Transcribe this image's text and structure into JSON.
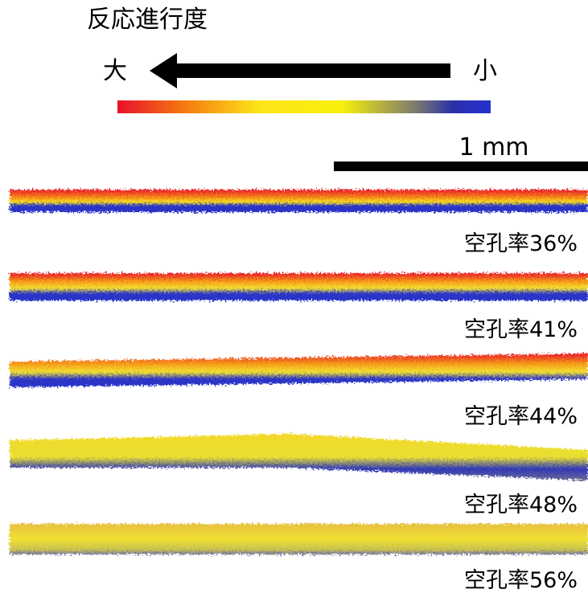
{
  "legend": {
    "title": "反応進行度",
    "high": "大",
    "low": "小"
  },
  "scale_bar": {
    "label": "1 mm"
  },
  "samples": [
    {
      "label": "空孔率36%"
    },
    {
      "label": "空孔率41%"
    },
    {
      "label": "空孔率44%"
    },
    {
      "label": "空孔率48%"
    },
    {
      "label": "空孔率56%"
    }
  ]
}
